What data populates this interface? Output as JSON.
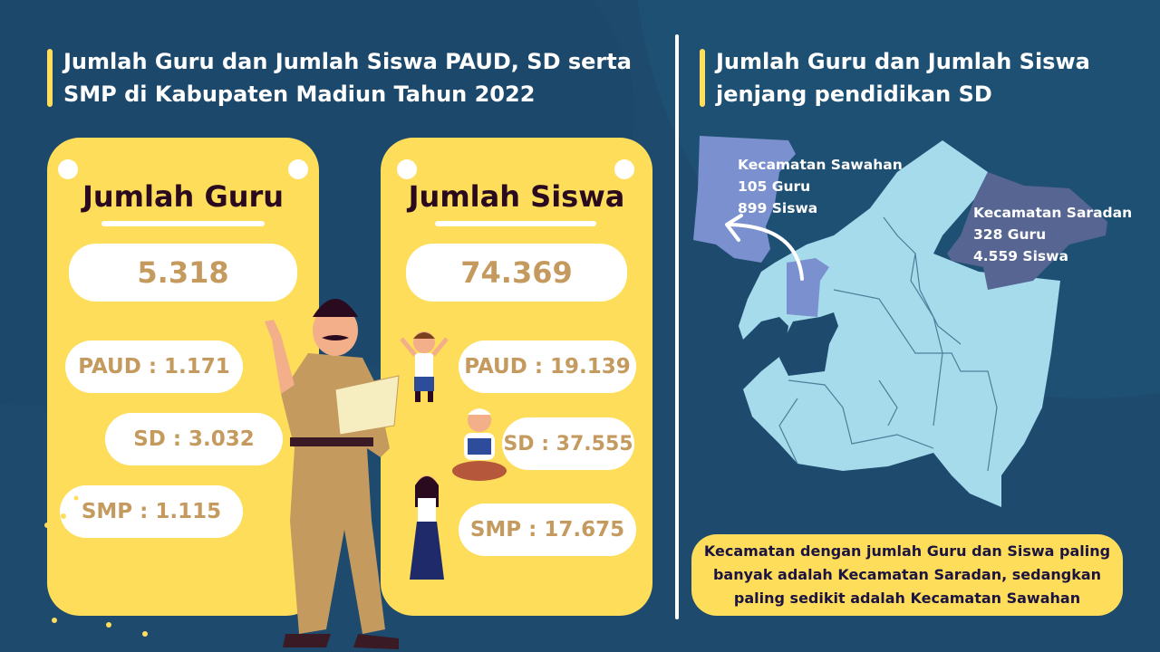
{
  "left": {
    "title": "Jumlah Guru dan Jumlah Siswa PAUD, SD serta SMP di Kabupaten Madiun Tahun 2022",
    "guru": {
      "heading": "Jumlah Guru",
      "total": "5.318",
      "paud": "PAUD : 1.171",
      "sd": "SD : 3.032",
      "smp": "SMP : 1.115"
    },
    "siswa": {
      "heading": "Jumlah Siswa",
      "total": "74.369",
      "paud": "PAUD : 19.139",
      "sd": "SD : 37.555",
      "smp": "SMP : 17.675"
    }
  },
  "right": {
    "title": "Jumlah Guru dan Jumlah Siswa jenjang pendidikan SD",
    "sawahan": {
      "name": "Kecamatan Sawahan",
      "guru": "105 Guru",
      "siswa": "899 Siswa"
    },
    "saradan": {
      "name": "Kecamatan Saradan",
      "guru": "328 Guru",
      "siswa": "4.559 Siswa"
    },
    "summary": "Kecamatan dengan jumlah Guru dan Siswa paling banyak adalah Kecamatan Saradan, sedangkan paling sedikit adalah Kecamatan Sawahan"
  },
  "colors": {
    "background": "#1d4a6d",
    "accent": "#fedd5a",
    "number": "#c49a5e",
    "map": "#a5dbeb",
    "sawahan": "#7b90cf",
    "saradan": "#566591"
  }
}
